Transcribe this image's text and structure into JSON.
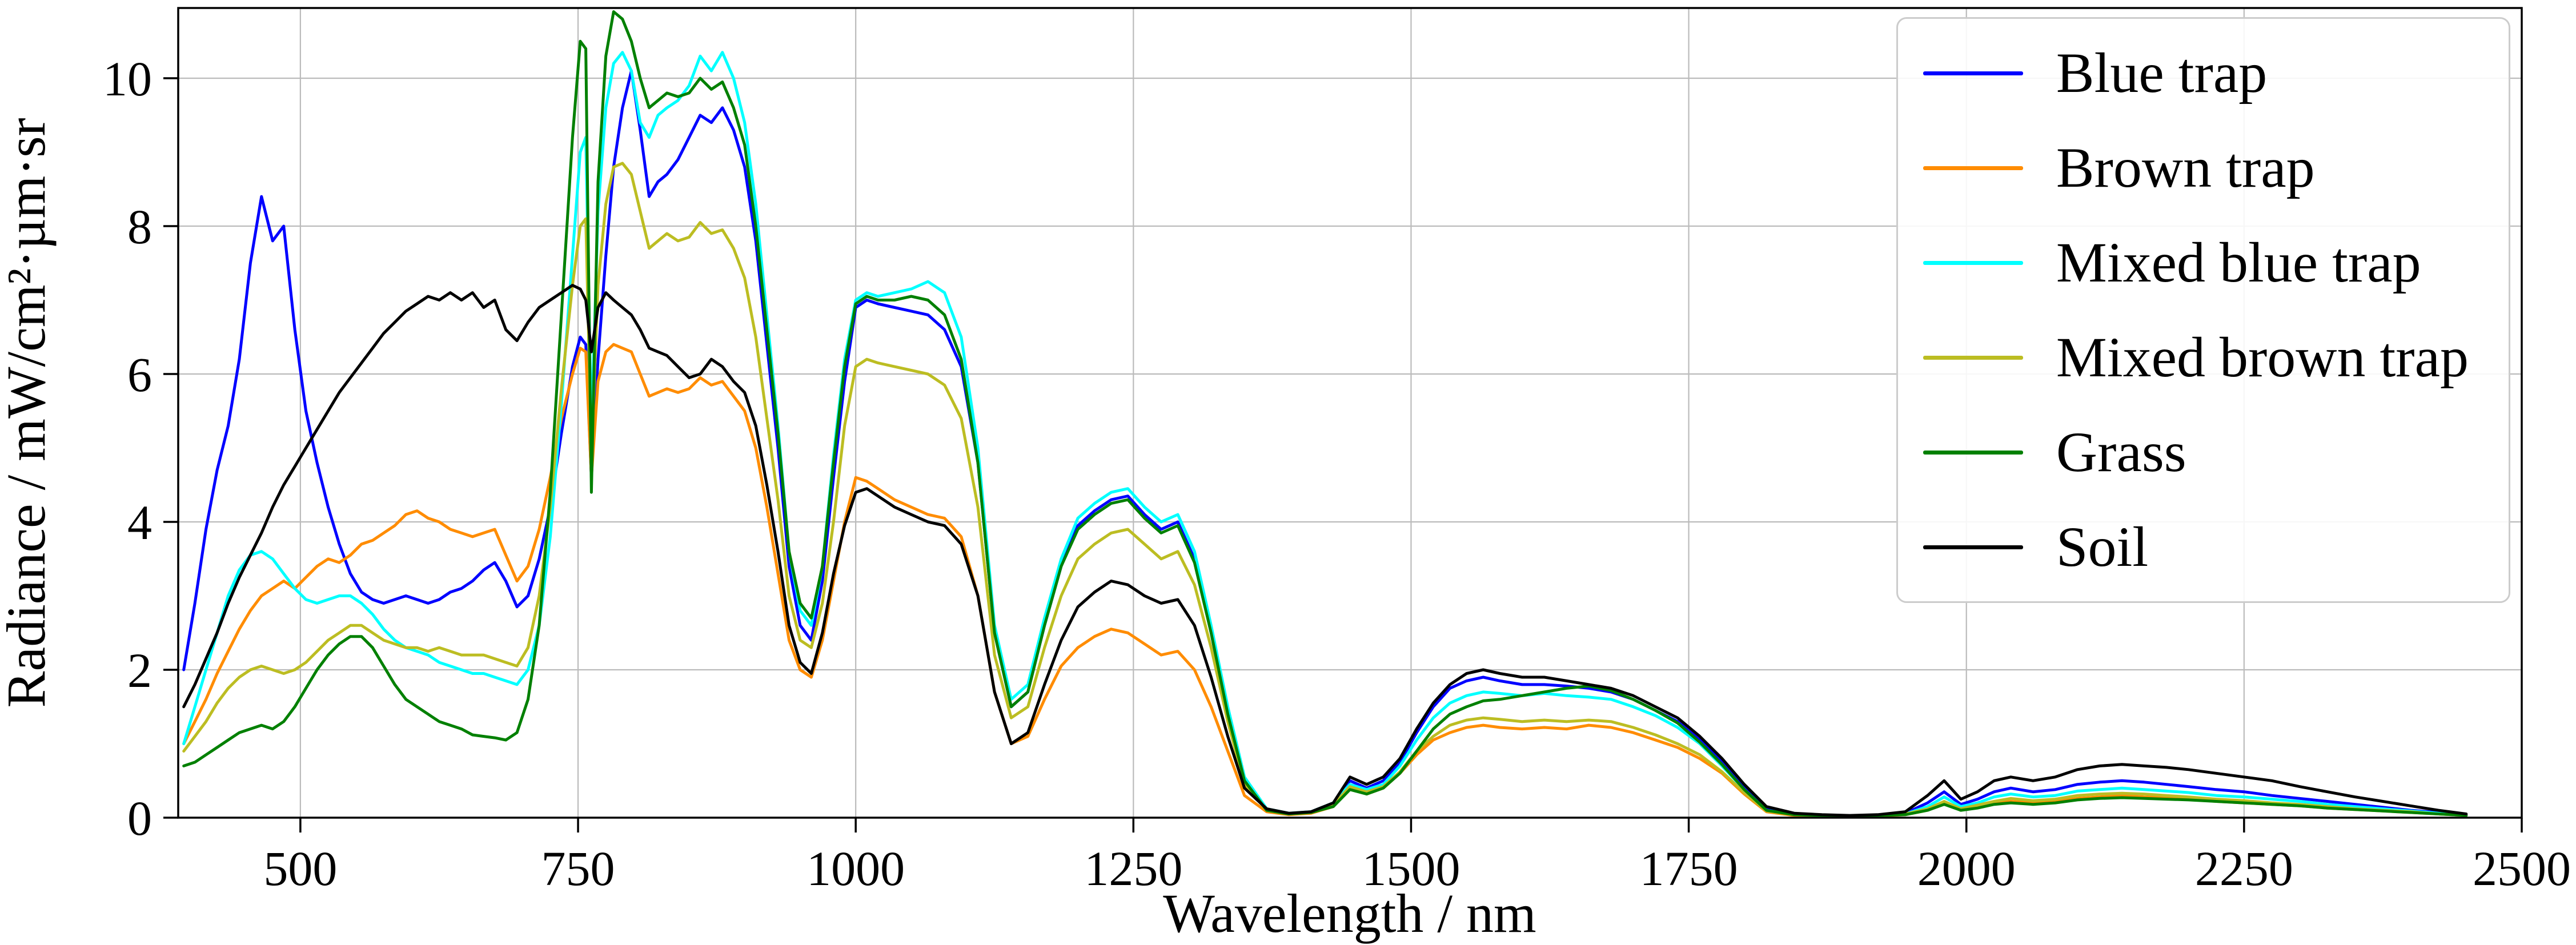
{
  "chart_data": {
    "type": "line",
    "title": "",
    "xlabel": "Wavelength / nm",
    "ylabel": "Radiance / mW/cm²·µm·sr",
    "xlim": [
      390,
      2500
    ],
    "ylim": [
      0,
      10.95
    ],
    "xticks": [
      500,
      750,
      1000,
      1250,
      1500,
      1750,
      2000,
      2250,
      2500
    ],
    "yticks": [
      0,
      2,
      4,
      6,
      8,
      10
    ],
    "grid": true,
    "grid_color": "#bbbbbb",
    "legend_position": "upper right",
    "x": [
      395,
      405,
      415,
      425,
      435,
      445,
      455,
      465,
      475,
      485,
      495,
      505,
      515,
      525,
      535,
      545,
      555,
      565,
      575,
      585,
      595,
      605,
      615,
      625,
      635,
      645,
      655,
      665,
      675,
      685,
      695,
      705,
      715,
      725,
      735,
      745,
      752,
      757,
      762,
      768,
      775,
      782,
      790,
      798,
      806,
      814,
      822,
      830,
      840,
      850,
      860,
      870,
      880,
      890,
      900,
      910,
      920,
      930,
      940,
      950,
      960,
      970,
      980,
      990,
      1000,
      1010,
      1020,
      1035,
      1050,
      1065,
      1080,
      1095,
      1110,
      1125,
      1140,
      1155,
      1170,
      1185,
      1200,
      1215,
      1230,
      1245,
      1260,
      1275,
      1290,
      1305,
      1320,
      1335,
      1350,
      1370,
      1390,
      1410,
      1430,
      1445,
      1460,
      1475,
      1490,
      1505,
      1520,
      1535,
      1550,
      1565,
      1580,
      1600,
      1620,
      1640,
      1660,
      1680,
      1700,
      1720,
      1740,
      1760,
      1780,
      1800,
      1820,
      1845,
      1870,
      1895,
      1920,
      1945,
      1965,
      1980,
      1995,
      2010,
      2025,
      2040,
      2060,
      2080,
      2100,
      2120,
      2140,
      2160,
      2180,
      2200,
      2225,
      2250,
      2275,
      2300,
      2325,
      2350,
      2375,
      2400,
      2425,
      2450
    ],
    "series": [
      {
        "name": "Blue trap",
        "color": "#0000ff",
        "values": [
          2.0,
          2.9,
          3.9,
          4.7,
          5.3,
          6.2,
          7.5,
          8.4,
          7.8,
          8.0,
          6.6,
          5.5,
          4.8,
          4.2,
          3.7,
          3.3,
          3.05,
          2.95,
          2.9,
          2.95,
          3.0,
          2.95,
          2.9,
          2.95,
          3.05,
          3.1,
          3.2,
          3.35,
          3.45,
          3.2,
          2.85,
          3.0,
          3.5,
          4.2,
          5.2,
          6.1,
          6.5,
          6.4,
          4.6,
          6.2,
          7.6,
          8.8,
          9.6,
          10.1,
          9.3,
          8.4,
          8.6,
          8.7,
          8.9,
          9.2,
          9.5,
          9.4,
          9.6,
          9.3,
          8.8,
          7.8,
          6.4,
          5.0,
          3.4,
          2.6,
          2.4,
          3.2,
          4.6,
          5.9,
          6.9,
          7.0,
          6.95,
          6.9,
          6.85,
          6.8,
          6.6,
          6.1,
          4.8,
          2.5,
          1.5,
          1.7,
          2.6,
          3.4,
          3.95,
          4.15,
          4.3,
          4.35,
          4.1,
          3.9,
          4.0,
          3.5,
          2.5,
          1.4,
          0.5,
          0.1,
          0.05,
          0.07,
          0.18,
          0.5,
          0.4,
          0.5,
          0.75,
          1.15,
          1.5,
          1.75,
          1.85,
          1.9,
          1.85,
          1.8,
          1.8,
          1.78,
          1.75,
          1.7,
          1.6,
          1.45,
          1.3,
          1.05,
          0.75,
          0.4,
          0.12,
          0.05,
          0.03,
          0.02,
          0.03,
          0.06,
          0.2,
          0.35,
          0.18,
          0.25,
          0.35,
          0.4,
          0.35,
          0.38,
          0.45,
          0.48,
          0.5,
          0.48,
          0.45,
          0.42,
          0.38,
          0.35,
          0.3,
          0.26,
          0.22,
          0.18,
          0.14,
          0.1,
          0.07,
          0.04
        ]
      },
      {
        "name": "Brown trap",
        "color": "#ff8c00",
        "values": [
          1.0,
          1.3,
          1.6,
          1.95,
          2.25,
          2.55,
          2.8,
          3.0,
          3.1,
          3.2,
          3.1,
          3.25,
          3.4,
          3.5,
          3.45,
          3.55,
          3.7,
          3.75,
          3.85,
          3.95,
          4.1,
          4.15,
          4.05,
          4.0,
          3.9,
          3.85,
          3.8,
          3.85,
          3.9,
          3.55,
          3.2,
          3.4,
          3.9,
          4.6,
          5.4,
          6.0,
          6.35,
          6.3,
          4.6,
          5.9,
          6.3,
          6.4,
          6.35,
          6.3,
          6.0,
          5.7,
          5.75,
          5.8,
          5.75,
          5.8,
          5.95,
          5.85,
          5.9,
          5.7,
          5.5,
          5.0,
          4.2,
          3.3,
          2.4,
          2.0,
          1.9,
          2.4,
          3.2,
          4.0,
          4.6,
          4.55,
          4.45,
          4.3,
          4.2,
          4.1,
          4.05,
          3.8,
          3.0,
          1.7,
          1.0,
          1.1,
          1.6,
          2.05,
          2.3,
          2.45,
          2.55,
          2.5,
          2.35,
          2.2,
          2.25,
          2.0,
          1.5,
          0.9,
          0.3,
          0.08,
          0.04,
          0.06,
          0.15,
          0.4,
          0.32,
          0.4,
          0.6,
          0.85,
          1.05,
          1.15,
          1.22,
          1.25,
          1.22,
          1.2,
          1.22,
          1.2,
          1.25,
          1.22,
          1.15,
          1.05,
          0.95,
          0.8,
          0.6,
          0.32,
          0.08,
          0.03,
          0.02,
          0.02,
          0.02,
          0.04,
          0.1,
          0.2,
          0.1,
          0.15,
          0.2,
          0.22,
          0.2,
          0.22,
          0.26,
          0.28,
          0.3,
          0.28,
          0.27,
          0.25,
          0.22,
          0.2,
          0.18,
          0.16,
          0.13,
          0.11,
          0.09,
          0.07,
          0.05,
          0.03
        ]
      },
      {
        "name": "Mixed blue trap",
        "color": "#00ffff",
        "values": [
          1.0,
          1.5,
          2.0,
          2.5,
          3.0,
          3.35,
          3.55,
          3.6,
          3.5,
          3.3,
          3.1,
          2.95,
          2.9,
          2.95,
          3.0,
          3.0,
          2.9,
          2.75,
          2.55,
          2.4,
          2.3,
          2.25,
          2.2,
          2.1,
          2.05,
          2.0,
          1.95,
          1.95,
          1.9,
          1.85,
          1.8,
          2.0,
          2.6,
          3.8,
          5.6,
          7.6,
          9.0,
          9.2,
          5.2,
          8.2,
          9.6,
          10.2,
          10.35,
          10.1,
          9.4,
          9.2,
          9.5,
          9.6,
          9.7,
          9.9,
          10.3,
          10.1,
          10.35,
          10.0,
          9.4,
          8.3,
          6.8,
          5.3,
          3.6,
          2.8,
          2.6,
          3.4,
          4.9,
          6.2,
          7.0,
          7.1,
          7.05,
          7.1,
          7.15,
          7.25,
          7.1,
          6.5,
          5.0,
          2.6,
          1.6,
          1.8,
          2.7,
          3.5,
          4.05,
          4.25,
          4.4,
          4.45,
          4.2,
          4.0,
          4.1,
          3.6,
          2.6,
          1.5,
          0.55,
          0.12,
          0.06,
          0.08,
          0.2,
          0.45,
          0.38,
          0.45,
          0.7,
          1.05,
          1.35,
          1.55,
          1.65,
          1.7,
          1.68,
          1.65,
          1.68,
          1.65,
          1.63,
          1.6,
          1.5,
          1.38,
          1.22,
          1.0,
          0.7,
          0.38,
          0.1,
          0.04,
          0.03,
          0.02,
          0.03,
          0.05,
          0.15,
          0.28,
          0.15,
          0.2,
          0.28,
          0.32,
          0.28,
          0.3,
          0.36,
          0.38,
          0.4,
          0.38,
          0.36,
          0.34,
          0.3,
          0.28,
          0.25,
          0.22,
          0.18,
          0.15,
          0.12,
          0.09,
          0.06,
          0.03
        ]
      },
      {
        "name": "Mixed brown trap",
        "color": "#bcbd22",
        "values": [
          0.9,
          1.1,
          1.3,
          1.55,
          1.75,
          1.9,
          2.0,
          2.05,
          2.0,
          1.95,
          2.0,
          2.1,
          2.25,
          2.4,
          2.5,
          2.6,
          2.6,
          2.5,
          2.4,
          2.35,
          2.3,
          2.3,
          2.25,
          2.3,
          2.25,
          2.2,
          2.2,
          2.2,
          2.15,
          2.1,
          2.05,
          2.3,
          3.0,
          4.2,
          5.8,
          7.2,
          8.0,
          8.1,
          4.9,
          7.2,
          8.3,
          8.8,
          8.85,
          8.7,
          8.2,
          7.7,
          7.8,
          7.9,
          7.8,
          7.85,
          8.05,
          7.9,
          7.95,
          7.7,
          7.3,
          6.5,
          5.4,
          4.3,
          3.0,
          2.4,
          2.3,
          2.9,
          4.0,
          5.3,
          6.1,
          6.2,
          6.15,
          6.1,
          6.05,
          6.0,
          5.85,
          5.4,
          4.2,
          2.2,
          1.35,
          1.5,
          2.3,
          3.0,
          3.5,
          3.7,
          3.85,
          3.9,
          3.7,
          3.5,
          3.6,
          3.15,
          2.3,
          1.3,
          0.45,
          0.1,
          0.05,
          0.07,
          0.17,
          0.42,
          0.35,
          0.42,
          0.62,
          0.9,
          1.1,
          1.25,
          1.32,
          1.35,
          1.33,
          1.3,
          1.32,
          1.3,
          1.32,
          1.3,
          1.22,
          1.12,
          1.0,
          0.85,
          0.62,
          0.34,
          0.09,
          0.04,
          0.03,
          0.02,
          0.03,
          0.05,
          0.12,
          0.22,
          0.12,
          0.17,
          0.22,
          0.26,
          0.23,
          0.25,
          0.3,
          0.32,
          0.33,
          0.32,
          0.3,
          0.28,
          0.25,
          0.23,
          0.2,
          0.18,
          0.15,
          0.12,
          0.1,
          0.08,
          0.05,
          0.03
        ]
      },
      {
        "name": "Grass",
        "color": "#008000",
        "values": [
          0.7,
          0.75,
          0.85,
          0.95,
          1.05,
          1.15,
          1.2,
          1.25,
          1.2,
          1.3,
          1.5,
          1.75,
          2.0,
          2.2,
          2.35,
          2.45,
          2.45,
          2.3,
          2.05,
          1.8,
          1.6,
          1.5,
          1.4,
          1.3,
          1.25,
          1.2,
          1.12,
          1.1,
          1.08,
          1.05,
          1.15,
          1.6,
          2.6,
          4.4,
          6.8,
          9.2,
          10.5,
          10.4,
          4.4,
          8.6,
          10.3,
          10.9,
          10.8,
          10.5,
          10.0,
          9.6,
          9.7,
          9.8,
          9.75,
          9.8,
          10.0,
          9.85,
          9.95,
          9.6,
          9.1,
          8.0,
          6.6,
          5.2,
          3.6,
          2.9,
          2.7,
          3.4,
          4.8,
          6.1,
          6.95,
          7.05,
          7.0,
          7.0,
          7.05,
          7.0,
          6.8,
          6.2,
          4.8,
          2.5,
          1.5,
          1.7,
          2.6,
          3.4,
          3.9,
          4.1,
          4.25,
          4.3,
          4.05,
          3.85,
          3.95,
          3.45,
          2.5,
          1.4,
          0.5,
          0.1,
          0.05,
          0.07,
          0.15,
          0.38,
          0.32,
          0.4,
          0.6,
          0.9,
          1.2,
          1.4,
          1.5,
          1.58,
          1.6,
          1.65,
          1.7,
          1.75,
          1.78,
          1.72,
          1.6,
          1.45,
          1.28,
          1.02,
          0.72,
          0.38,
          0.1,
          0.04,
          0.03,
          0.02,
          0.03,
          0.04,
          0.1,
          0.18,
          0.1,
          0.13,
          0.18,
          0.2,
          0.18,
          0.2,
          0.24,
          0.26,
          0.27,
          0.26,
          0.25,
          0.24,
          0.22,
          0.2,
          0.18,
          0.16,
          0.13,
          0.11,
          0.09,
          0.07,
          0.05,
          0.03
        ]
      },
      {
        "name": "Soil",
        "color": "#000000",
        "values": [
          1.5,
          1.8,
          2.15,
          2.5,
          2.9,
          3.25,
          3.55,
          3.85,
          4.2,
          4.5,
          4.75,
          5.0,
          5.25,
          5.5,
          5.75,
          5.95,
          6.15,
          6.35,
          6.55,
          6.7,
          6.85,
          6.95,
          7.05,
          7.0,
          7.1,
          7.0,
          7.1,
          6.9,
          7.0,
          6.6,
          6.45,
          6.7,
          6.9,
          7.0,
          7.1,
          7.2,
          7.15,
          7.0,
          6.3,
          6.9,
          7.1,
          7.0,
          6.9,
          6.8,
          6.6,
          6.35,
          6.3,
          6.25,
          6.1,
          5.95,
          6.0,
          6.2,
          6.1,
          5.9,
          5.75,
          5.3,
          4.5,
          3.6,
          2.6,
          2.1,
          1.95,
          2.5,
          3.3,
          3.95,
          4.4,
          4.45,
          4.35,
          4.2,
          4.1,
          4.0,
          3.95,
          3.7,
          3.0,
          1.7,
          1.0,
          1.15,
          1.8,
          2.4,
          2.85,
          3.05,
          3.2,
          3.15,
          3.0,
          2.9,
          2.95,
          2.6,
          1.9,
          1.1,
          0.4,
          0.12,
          0.06,
          0.08,
          0.2,
          0.55,
          0.45,
          0.55,
          0.8,
          1.2,
          1.55,
          1.8,
          1.95,
          2.0,
          1.95,
          1.9,
          1.9,
          1.85,
          1.8,
          1.75,
          1.65,
          1.5,
          1.35,
          1.1,
          0.8,
          0.45,
          0.15,
          0.06,
          0.04,
          0.03,
          0.04,
          0.08,
          0.3,
          0.5,
          0.25,
          0.35,
          0.5,
          0.55,
          0.5,
          0.55,
          0.65,
          0.7,
          0.72,
          0.7,
          0.68,
          0.65,
          0.6,
          0.55,
          0.5,
          0.42,
          0.35,
          0.28,
          0.22,
          0.16,
          0.1,
          0.05
        ]
      }
    ]
  }
}
